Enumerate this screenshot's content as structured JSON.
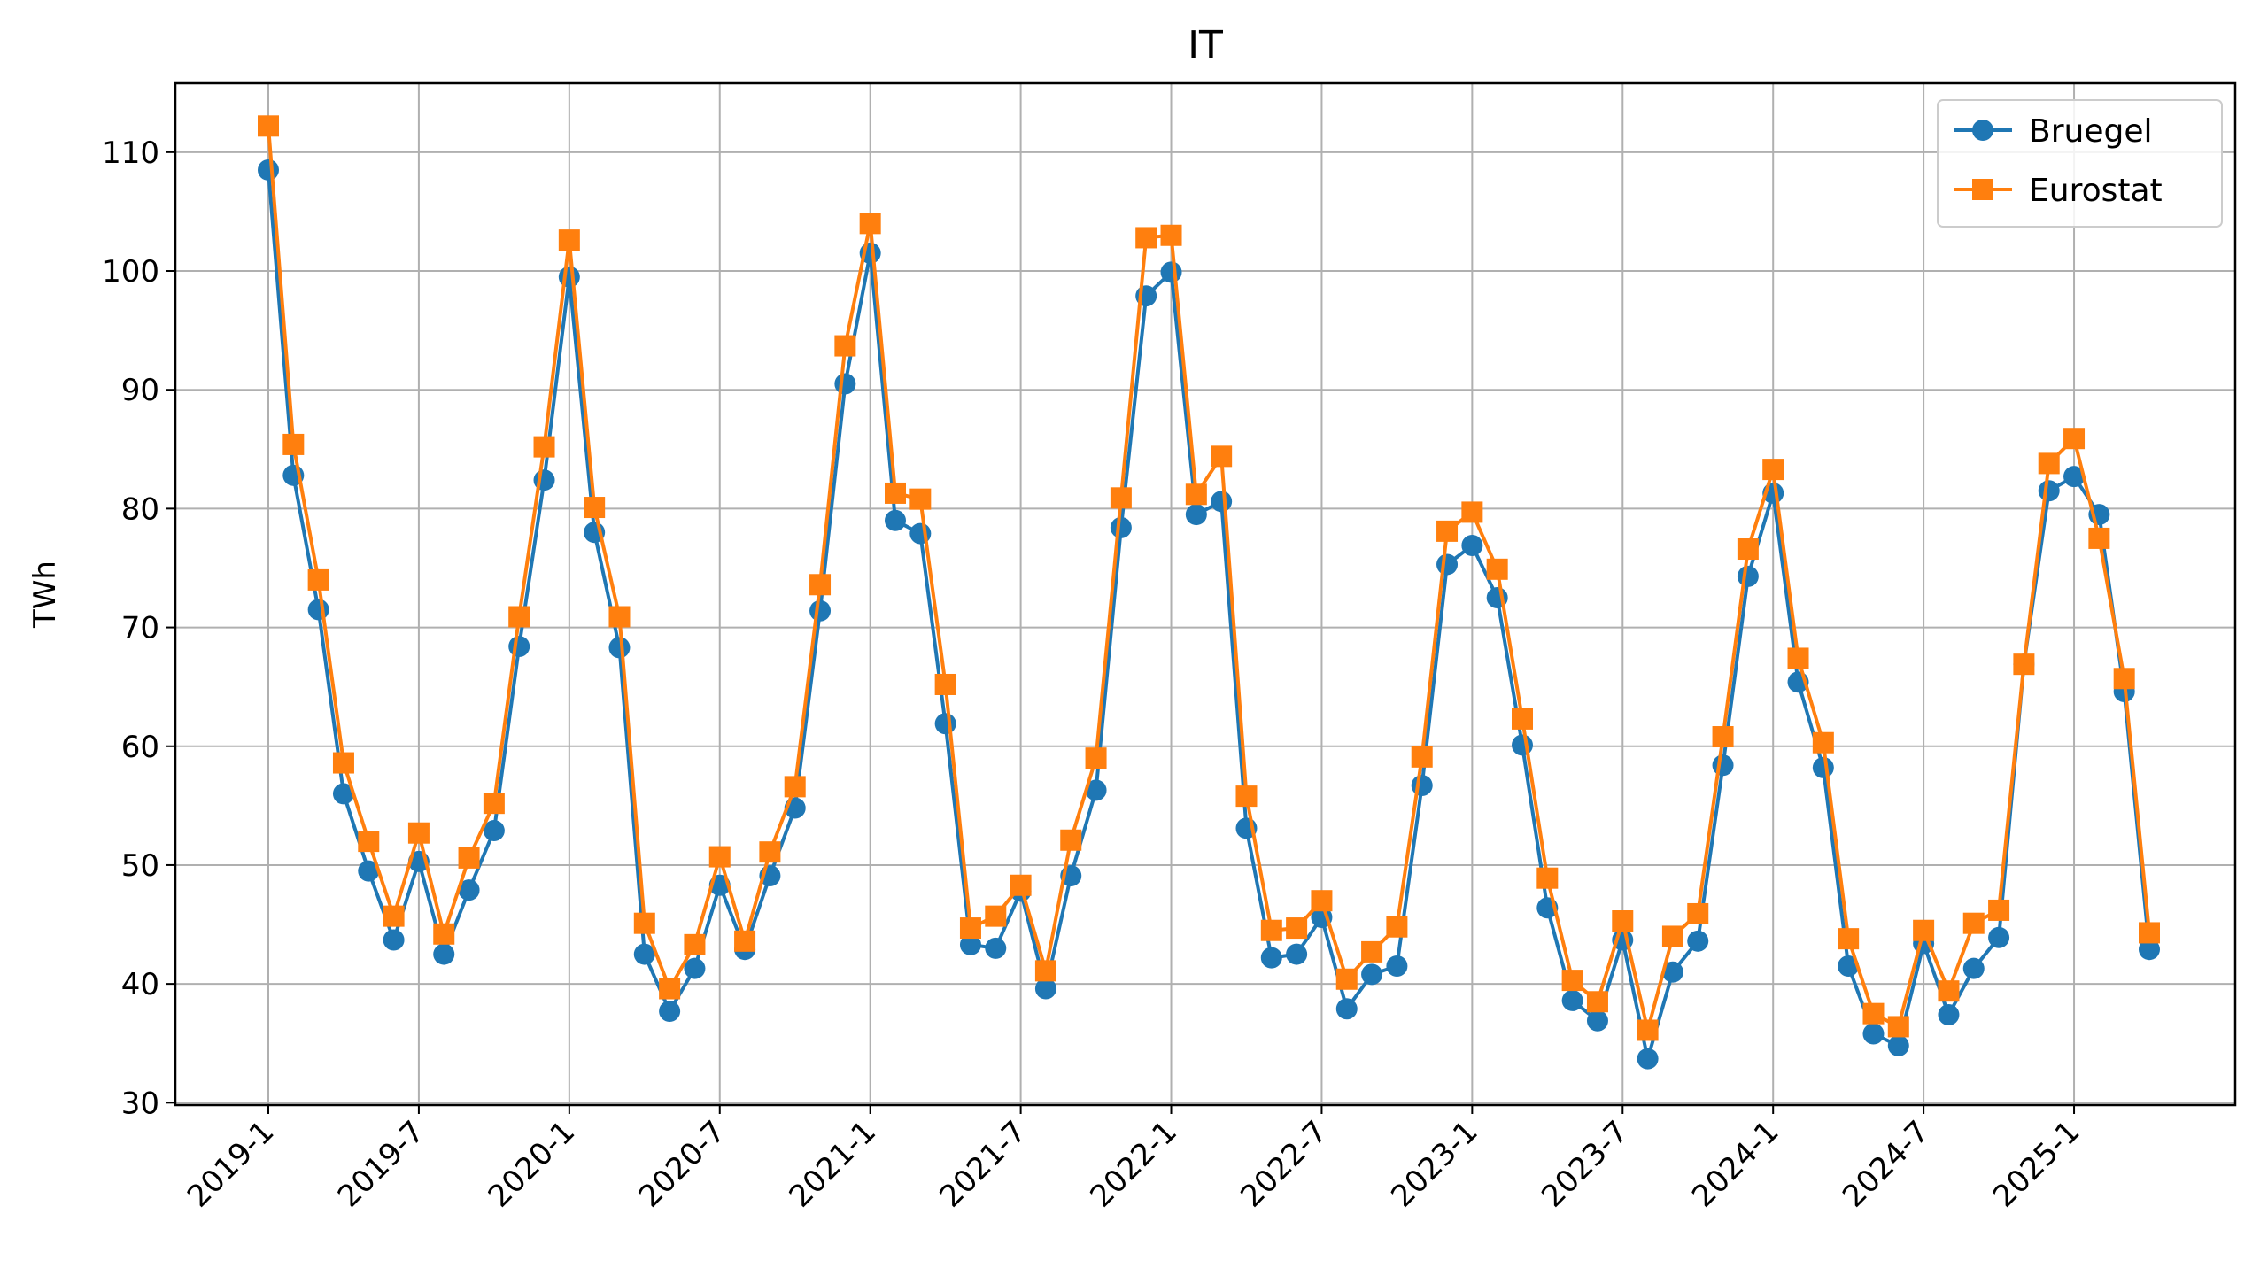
{
  "chart_data": {
    "type": "line",
    "title": "IT",
    "xlabel": "",
    "ylabel": "TWh",
    "ylim": [
      29.8,
      115.8
    ],
    "yticks": [
      30,
      40,
      50,
      60,
      70,
      80,
      90,
      100,
      110
    ],
    "xticks": [
      "2019-1",
      "2019-7",
      "2020-1",
      "2020-7",
      "2021-1",
      "2021-7",
      "2022-1",
      "2022-7",
      "2023-1",
      "2023-7",
      "2024-1",
      "2024-7",
      "2025-1"
    ],
    "grid": true,
    "legend_position": "top-right",
    "x": [
      "2019-1",
      "2019-2",
      "2019-3",
      "2019-4",
      "2019-5",
      "2019-6",
      "2019-7",
      "2019-8",
      "2019-9",
      "2019-10",
      "2019-11",
      "2019-12",
      "2020-1",
      "2020-2",
      "2020-3",
      "2020-4",
      "2020-5",
      "2020-6",
      "2020-7",
      "2020-8",
      "2020-9",
      "2020-10",
      "2020-11",
      "2020-12",
      "2021-1",
      "2021-2",
      "2021-3",
      "2021-4",
      "2021-5",
      "2021-6",
      "2021-7",
      "2021-8",
      "2021-9",
      "2021-10",
      "2021-11",
      "2021-12",
      "2022-1",
      "2022-2",
      "2022-3",
      "2022-4",
      "2022-5",
      "2022-6",
      "2022-7",
      "2022-8",
      "2022-9",
      "2022-10",
      "2022-11",
      "2022-12",
      "2023-1",
      "2023-2",
      "2023-3",
      "2023-4",
      "2023-5",
      "2023-6",
      "2023-7",
      "2023-8",
      "2023-9",
      "2023-10",
      "2023-11",
      "2023-12",
      "2024-1",
      "2024-2",
      "2024-3",
      "2024-4",
      "2024-5",
      "2024-6",
      "2024-7",
      "2024-8",
      "2024-9",
      "2024-10",
      "2024-11",
      "2024-12",
      "2025-1",
      "2025-2",
      "2025-3",
      "2025-4"
    ],
    "series": [
      {
        "name": "Bruegel",
        "color": "#1f77b4",
        "marker": "circle",
        "values": [
          108.5,
          82.8,
          71.5,
          56.0,
          49.5,
          43.7,
          50.3,
          42.5,
          47.9,
          52.9,
          68.4,
          82.4,
          99.5,
          78.0,
          68.3,
          42.5,
          37.7,
          41.3,
          48.3,
          42.9,
          49.1,
          54.8,
          71.4,
          90.5,
          101.5,
          79.0,
          77.9,
          61.9,
          43.3,
          43.0,
          47.8,
          39.6,
          49.1,
          56.3,
          78.4,
          97.9,
          99.9,
          79.5,
          80.6,
          53.1,
          42.2,
          42.5,
          45.6,
          37.9,
          40.8,
          41.5,
          56.7,
          75.3,
          76.9,
          72.5,
          60.1,
          46.4,
          38.6,
          36.9,
          43.7,
          33.7,
          41.0,
          43.6,
          58.4,
          74.3,
          81.3,
          65.4,
          58.2,
          41.5,
          35.8,
          34.8,
          43.4,
          37.4,
          41.3,
          43.9,
          66.9,
          81.5,
          82.7,
          79.5,
          64.6,
          42.9
        ]
      },
      {
        "name": "Eurostat",
        "color": "#ff7f0e",
        "marker": "square",
        "values": [
          112.2,
          85.4,
          74.0,
          58.6,
          52.0,
          45.7,
          52.7,
          44.2,
          50.6,
          55.2,
          70.9,
          85.2,
          102.6,
          80.1,
          70.9,
          45.1,
          39.6,
          43.3,
          50.7,
          43.6,
          51.1,
          56.6,
          73.6,
          93.7,
          104.0,
          81.3,
          80.8,
          65.2,
          44.7,
          45.7,
          48.3,
          41.1,
          52.1,
          59.0,
          80.9,
          102.8,
          103.0,
          81.2,
          84.4,
          55.8,
          44.5,
          44.7,
          47.0,
          40.4,
          42.7,
          44.8,
          59.1,
          78.1,
          79.7,
          74.9,
          62.3,
          48.9,
          40.3,
          38.5,
          45.3,
          36.1,
          44.0,
          45.9,
          60.8,
          76.6,
          83.3,
          67.4,
          60.3,
          43.8,
          37.5,
          36.4,
          44.5,
          39.4,
          45.1,
          46.2,
          66.9,
          83.8,
          85.9,
          77.5,
          65.7,
          44.3
        ]
      }
    ]
  }
}
